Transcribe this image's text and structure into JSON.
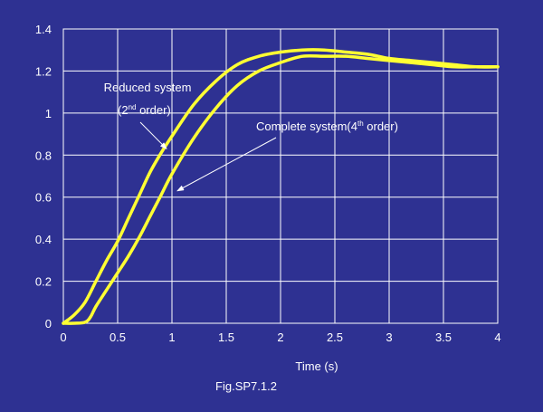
{
  "chart_data": {
    "type": "line",
    "title": "",
    "xlabel": "Time (s)",
    "ylabel": "",
    "caption": "Fig.SP7.1.2",
    "xlim": [
      0,
      4
    ],
    "ylim": [
      0,
      1.4
    ],
    "xticks": [
      {
        "v": 0,
        "label": "0"
      },
      {
        "v": 0.5,
        "label": "0.5"
      },
      {
        "v": 1,
        "label": "1"
      },
      {
        "v": 1.5,
        "label": "1.5"
      },
      {
        "v": 2,
        "label": "2"
      },
      {
        "v": 2.5,
        "label": "2.5"
      },
      {
        "v": 3,
        "label": "3"
      },
      {
        "v": 3.5,
        "label": "3.5"
      },
      {
        "v": 4,
        "label": "4"
      }
    ],
    "yticks": [
      {
        "v": 0,
        "label": "0"
      },
      {
        "v": 0.2,
        "label": "0.2"
      },
      {
        "v": 0.4,
        "label": "0.4"
      },
      {
        "v": 0.6,
        "label": "0.6"
      },
      {
        "v": 0.8,
        "label": "0.8"
      },
      {
        "v": 1,
        "label": "1"
      },
      {
        "v": 1.2,
        "label": "1.2"
      },
      {
        "v": 1.4,
        "label": "1.4"
      }
    ],
    "grid": true,
    "colors": {
      "background": "#2e3192",
      "line": "#ffff33",
      "grid": "#ffffff",
      "text": "#ffffff"
    },
    "series": [
      {
        "name": "Reduced system (2nd order)",
        "x": [
          0,
          0.1,
          0.2,
          0.3,
          0.4,
          0.5,
          0.6,
          0.7,
          0.8,
          0.9,
          1.0,
          1.2,
          1.4,
          1.6,
          1.8,
          2.0,
          2.2,
          2.4,
          2.6,
          2.8,
          3.0,
          3.2,
          3.4,
          3.6,
          3.8,
          4.0
        ],
        "y": [
          0,
          0.04,
          0.1,
          0.2,
          0.3,
          0.39,
          0.5,
          0.61,
          0.72,
          0.81,
          0.89,
          1.04,
          1.15,
          1.23,
          1.27,
          1.29,
          1.3,
          1.3,
          1.29,
          1.28,
          1.26,
          1.25,
          1.24,
          1.23,
          1.22,
          1.22
        ]
      },
      {
        "name": "Complete system(4th order)",
        "x": [
          0,
          0.1,
          0.2,
          0.25,
          0.3,
          0.4,
          0.5,
          0.6,
          0.7,
          0.8,
          0.9,
          1.0,
          1.2,
          1.4,
          1.6,
          1.8,
          2.0,
          2.2,
          2.4,
          2.6,
          2.8,
          3.0,
          3.2,
          3.4,
          3.6,
          3.8,
          4.0
        ],
        "y": [
          0,
          0,
          0.005,
          0.03,
          0.08,
          0.16,
          0.24,
          0.32,
          0.41,
          0.51,
          0.61,
          0.71,
          0.88,
          1.02,
          1.13,
          1.2,
          1.24,
          1.27,
          1.27,
          1.27,
          1.26,
          1.25,
          1.24,
          1.23,
          1.22,
          1.22,
          1.22
        ]
      }
    ],
    "annotations": {
      "reduced_line1": "Reduced system",
      "reduced_pre": "(2",
      "reduced_sup": "nd",
      "reduced_post": " order)",
      "complete_pre": "Complete system(4",
      "complete_sup": "th",
      "complete_post": " order)",
      "reduced_arrow_target": {
        "x": 0.95,
        "y": 0.83
      },
      "complete_arrow_target": {
        "x": 1.05,
        "y": 0.63
      }
    }
  }
}
